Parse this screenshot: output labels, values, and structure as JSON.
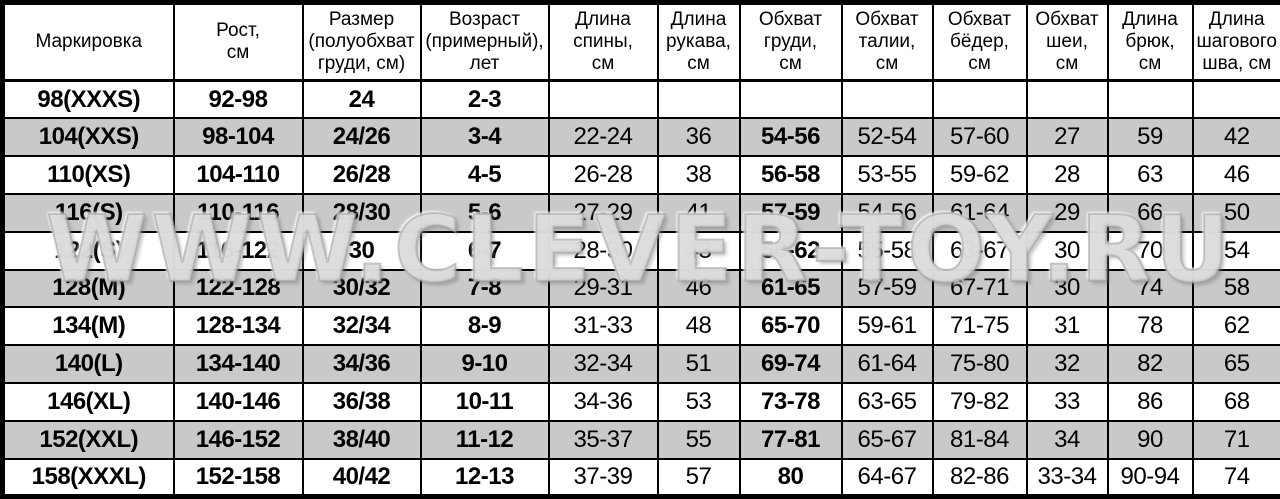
{
  "watermark": {
    "text": "WWW.CLEVER-TOY.RU"
  },
  "colors": {
    "row_alt_background": "#c9c9c9",
    "border": "#000000",
    "background": "#ffffff",
    "text": "#000000",
    "watermark": "#d6d6d6"
  },
  "chart_data": {
    "type": "table",
    "title": "",
    "columns": [
      "Маркировка",
      "Рост,\nсм",
      "Размер\n(полуобхват\nгруди, см)",
      "Возраст\n(примерный),\nлет",
      "Длина\nспины,\nсм",
      "Длина\nрукава,\nсм",
      "Обхват\nгруди,\nсм",
      "Обхват\nталии,\nсм",
      "Обхват\nбёдер,\nсм",
      "Обхват\nшеи,\nсм",
      "Длина\nбрюк,\nсм",
      "Длина\nшагового\nшва, см"
    ],
    "rows": [
      [
        "98(XXXS)",
        "92-98",
        "24",
        "2-3",
        "",
        "",
        "",
        "",
        "",
        "",
        "",
        ""
      ],
      [
        "104(XXS)",
        "98-104",
        "24/26",
        "3-4",
        "22-24",
        "36",
        "54-56",
        "52-54",
        "57-60",
        "27",
        "59",
        "42"
      ],
      [
        "110(XS)",
        "104-110",
        "26/28",
        "4-5",
        "26-28",
        "38",
        "56-58",
        "53-55",
        "59-62",
        "28",
        "63",
        "46"
      ],
      [
        "116(S)",
        "110-116",
        "28/30",
        "5-6",
        "27-29",
        "41",
        "57-59",
        "54-56",
        "61-64",
        "29",
        "66",
        "50"
      ],
      [
        "122(S)",
        "116-122",
        "30",
        "6-7",
        "28-30",
        "43",
        "58-62",
        "55-58",
        "63-67",
        "30",
        "70",
        "54"
      ],
      [
        "128(M)",
        "122-128",
        "30/32",
        "7-8",
        "29-31",
        "46",
        "61-65",
        "57-59",
        "67-71",
        "30",
        "74",
        "58"
      ],
      [
        "134(M)",
        "128-134",
        "32/34",
        "8-9",
        "31-33",
        "48",
        "65-70",
        "59-61",
        "71-75",
        "31",
        "78",
        "62"
      ],
      [
        "140(L)",
        "134-140",
        "34/36",
        "9-10",
        "32-34",
        "51",
        "69-74",
        "61-64",
        "75-80",
        "32",
        "82",
        "65"
      ],
      [
        "146(XL)",
        "140-146",
        "36/38",
        "10-11",
        "34-36",
        "53",
        "73-78",
        "63-65",
        "79-82",
        "33",
        "86",
        "68"
      ],
      [
        "152(XXL)",
        "146-152",
        "38/40",
        "11-12",
        "35-37",
        "55",
        "77-81",
        "65-67",
        "81-84",
        "34",
        "90",
        "71"
      ],
      [
        "158(XXXL)",
        "152-158",
        "40/42",
        "12-13",
        "37-39",
        "57",
        "80",
        "64-67",
        "82-86",
        "33-34",
        "90-94",
        "74"
      ]
    ],
    "bold_columns": [
      0,
      1,
      2,
      3,
      6
    ],
    "shaded_rows": [
      1,
      3,
      5,
      7,
      9
    ]
  }
}
